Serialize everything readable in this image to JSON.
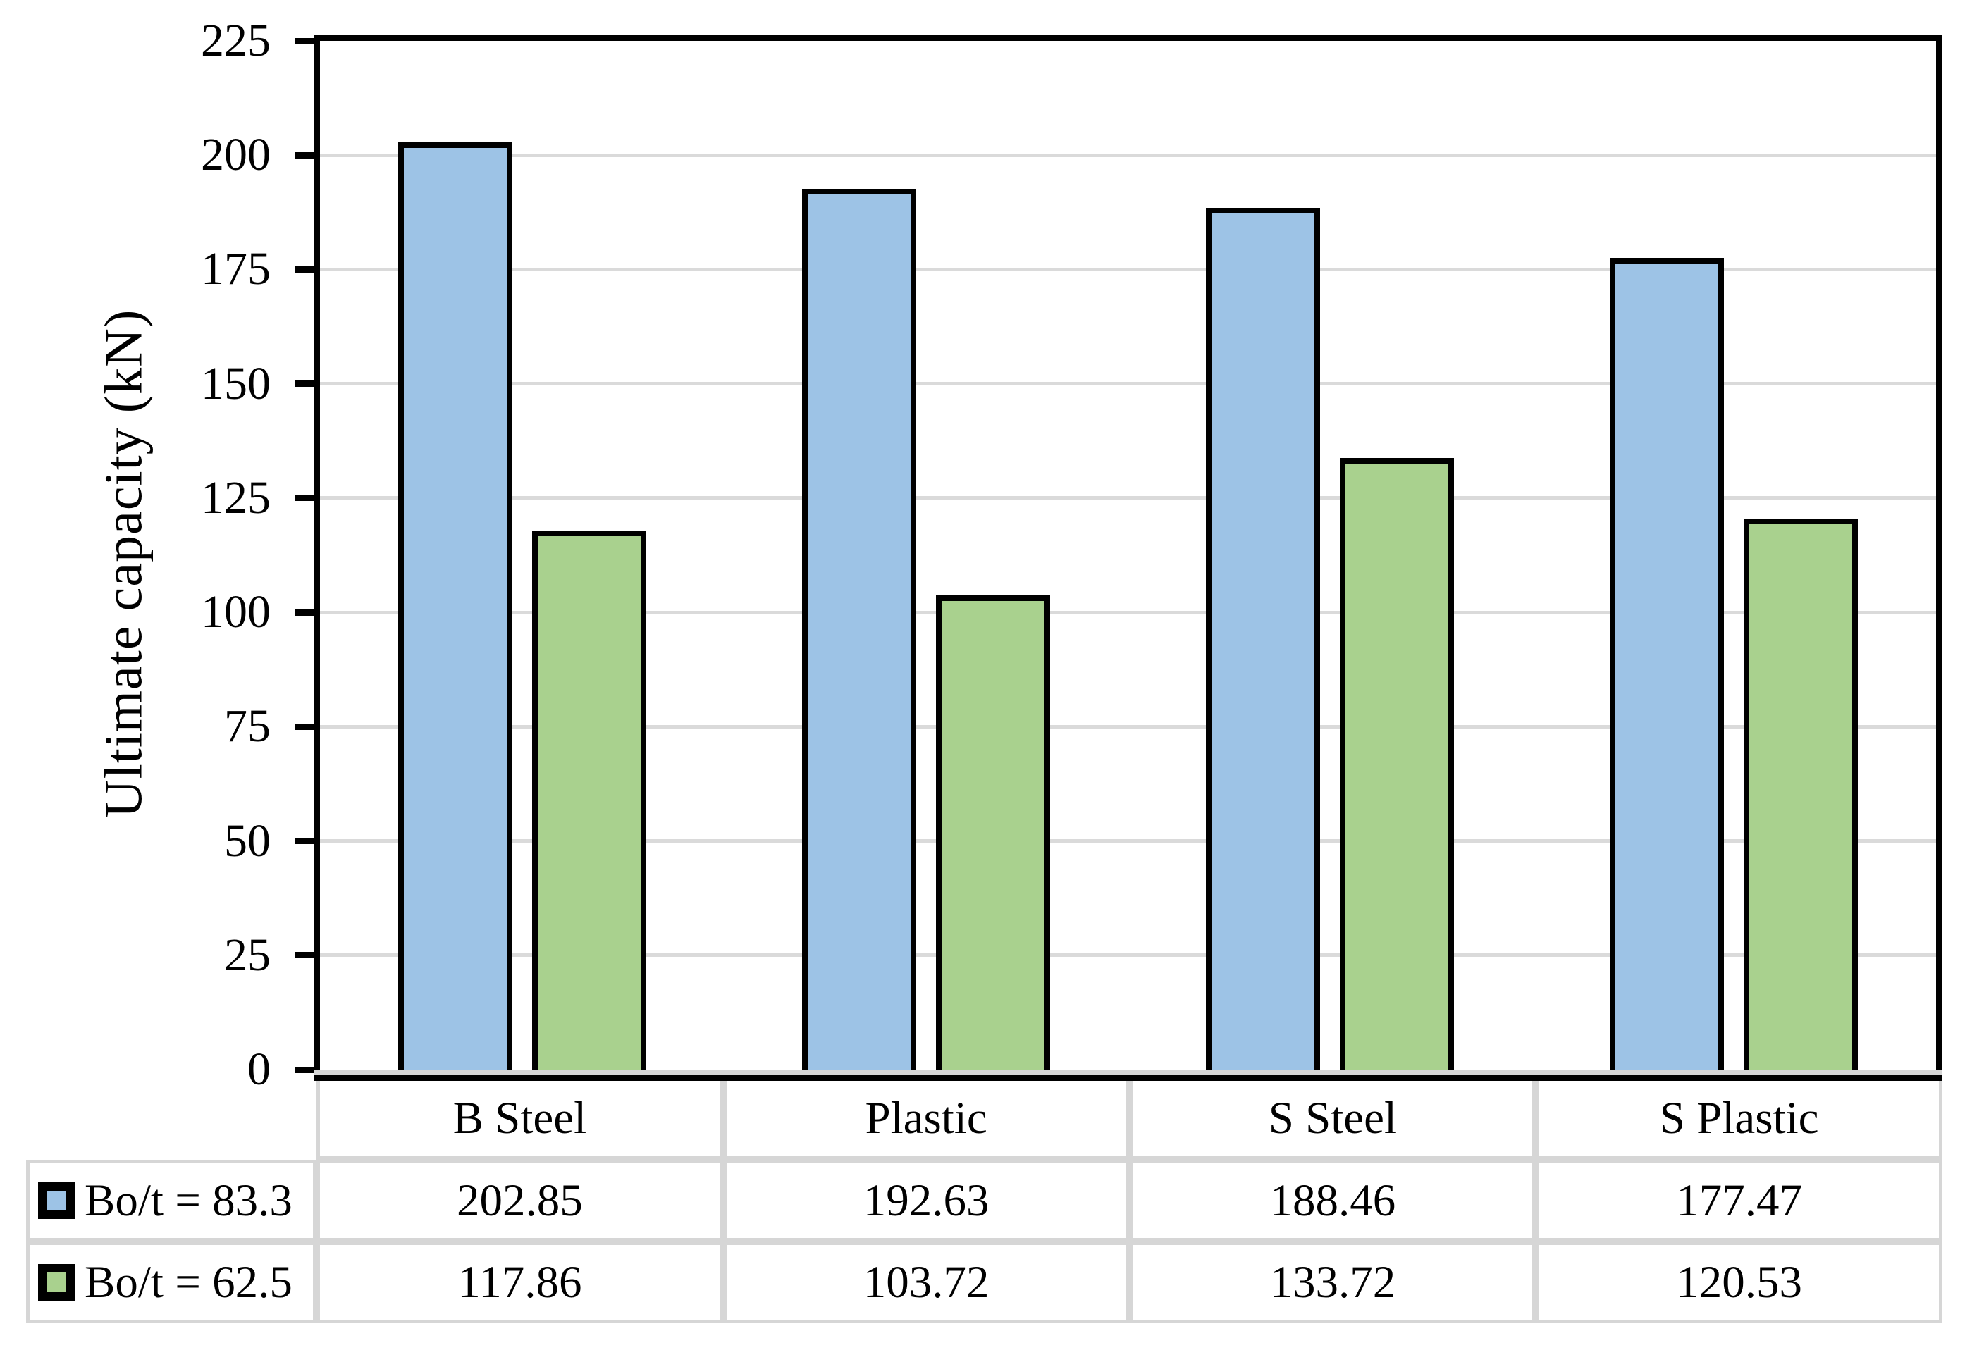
{
  "chart_data": {
    "type": "bar",
    "title": "",
    "xlabel": "",
    "ylabel": "Ultimate capacity (kN)",
    "categories": [
      "B Steel",
      "Plastic",
      "S Steel",
      "S Plastic"
    ],
    "series": [
      {
        "name": "Bo/t = 83.3",
        "color": "#9DC3E6",
        "values": [
          "202.85",
          "192.63",
          "188.46",
          "177.47"
        ]
      },
      {
        "name": "Bo/t = 62.5",
        "color": "#A9D18E",
        "values": [
          "117.86",
          "103.72",
          "133.72",
          "120.53"
        ]
      }
    ],
    "ylim": [
      0,
      225
    ],
    "ytick_step": 25,
    "yticks": [
      "0",
      "25",
      "50",
      "75",
      "100",
      "125",
      "150",
      "175",
      "200",
      "225"
    ],
    "grid": "horizontal",
    "legend_position": "data-table-left",
    "colors": {
      "axis": "#000000",
      "bar_outline": "#000000",
      "gridline": "#DADADA",
      "table_border": "#D6D6D6",
      "background": "#FFFFFF",
      "text": "#000000"
    }
  }
}
